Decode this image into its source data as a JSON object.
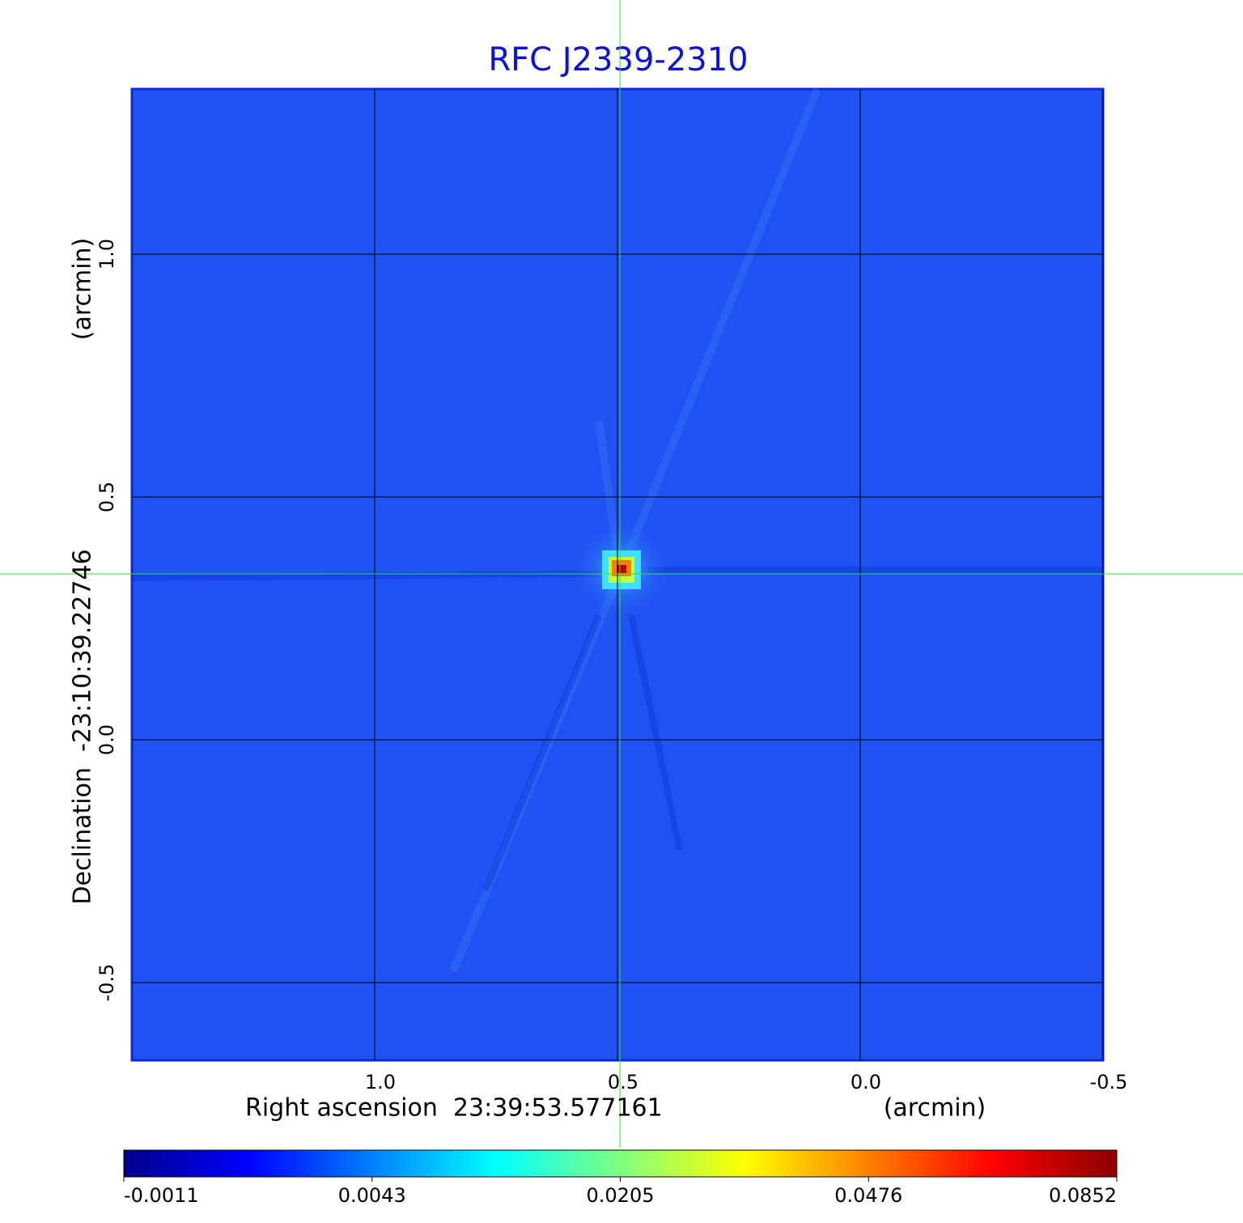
{
  "chart_data": {
    "type": "image",
    "title": "RFC J2339-2310",
    "xlabel": "Right ascension  23:39:53.577161",
    "xunit": "(arcmin)",
    "ylabel": "Declination  -23:10:39.22746",
    "yunit": "(arcmin)",
    "xlim": [
      1.5,
      -0.5
    ],
    "ylim": [
      -0.66,
      1.34
    ],
    "xticks": [
      {
        "value": 1,
        "label": "1.0"
      },
      0.5,
      {
        "value": 0,
        "label": "0.0"
      },
      -0.5
    ],
    "yticks": [
      -0.5,
      {
        "value": 0,
        "label": "0.0"
      },
      0.5,
      {
        "value": 1,
        "label": "1.0"
      }
    ],
    "grid": true,
    "colorbar_ticks": [
      -0.0011,
      0.0043,
      0.0205,
      0.0476,
      0.0852
    ],
    "colormap": [
      "#00008b",
      "#0000ff",
      "#0080ff",
      "#00ffff",
      "#80ff80",
      "#ffff00",
      "#ff8000",
      "#ff0000",
      "#8b0000"
    ]
  }
}
